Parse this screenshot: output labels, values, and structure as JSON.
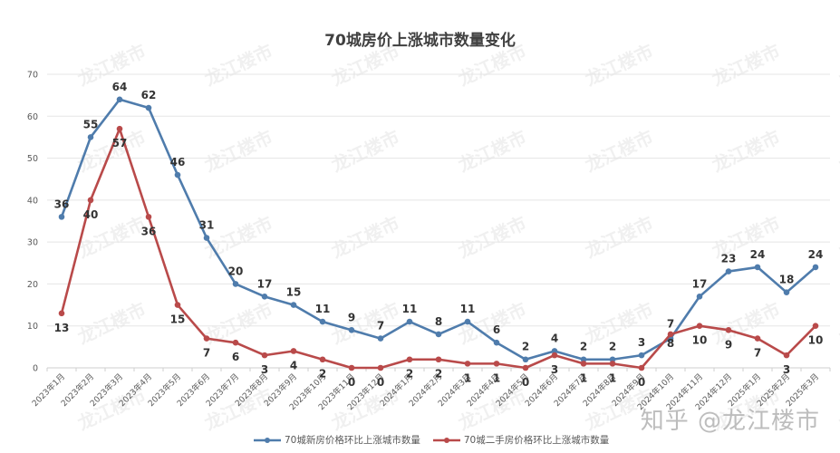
{
  "title": "70城房价上涨城市数量变化",
  "watermark": {
    "repeated": "龙江楼市",
    "footer": "知乎 @龙江楼市"
  },
  "colors": {
    "new_homes": "#4f7cac",
    "second_hand": "#b94a4a",
    "grid": "#e5e5e5",
    "axis_text": "#595959",
    "label_text": "#333333"
  },
  "legend": {
    "new_homes": "70城新房价格环比上涨城市数量",
    "second_hand": "70城二手房价格环比上涨城市数量"
  },
  "chart_data": {
    "type": "line",
    "title": "70城房价上涨城市数量变化",
    "xlabel": "",
    "ylabel": "",
    "ylim": [
      0,
      70
    ],
    "yticks": [
      0,
      10,
      20,
      30,
      40,
      50,
      60,
      70
    ],
    "grid": true,
    "legend_position": "bottom",
    "categories": [
      "2023年1月",
      "2023年2月",
      "2023年3月",
      "2023年4月",
      "2023年5月",
      "2023年6月",
      "2023年7月",
      "2023年8月",
      "2023年9月",
      "2023年10月",
      "2023年11月",
      "2023年12月",
      "2024年1月",
      "2024年2月",
      "2024年3月",
      "2024年4月",
      "2024年5月",
      "2024年6月",
      "2024年7月",
      "2024年8月",
      "2024年9月",
      "2024年10月",
      "2024年11月",
      "2024年12月",
      "2025年1月",
      "2025年2月",
      "2025年3月"
    ],
    "series": [
      {
        "name": "70城新房价格环比上涨城市数量",
        "color": "#4f7cac",
        "values": [
          36,
          55,
          64,
          62,
          46,
          31,
          20,
          17,
          15,
          11,
          9,
          7,
          11,
          8,
          11,
          6,
          2,
          4,
          2,
          2,
          3,
          7,
          17,
          23,
          24,
          18,
          24
        ]
      },
      {
        "name": "70城二手房价格环比上涨城市数量",
        "color": "#b94a4a",
        "values": [
          13,
          40,
          57,
          36,
          15,
          7,
          6,
          3,
          4,
          2,
          0,
          0,
          2,
          2,
          1,
          1,
          0,
          3,
          1,
          1,
          0,
          8,
          10,
          9,
          7,
          3,
          10
        ]
      }
    ]
  }
}
